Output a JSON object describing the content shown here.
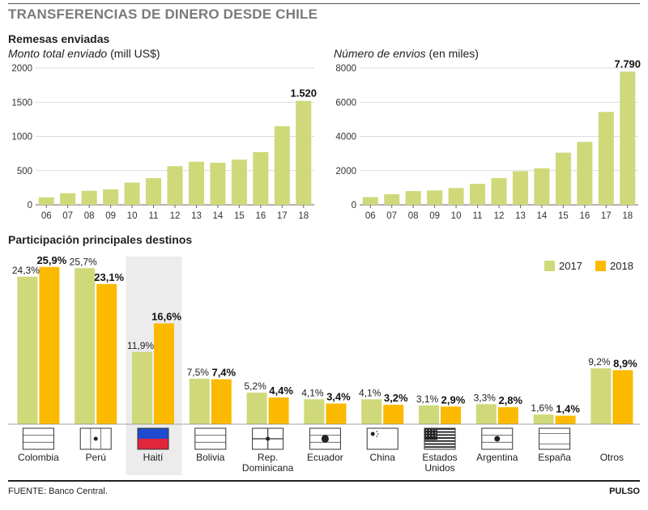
{
  "title": "TRANSFERENCIAS DE DINERO DESDE CHILE",
  "section1_title": "Remesas enviadas",
  "section2_title": "Participación principales destinos",
  "source": "FUENTE: Banco Central.",
  "brand": "PULSO",
  "colors": {
    "c2017": "#cfd97a",
    "c2018": "#fbba00",
    "highlight": "#ececec",
    "axis": "#888888"
  },
  "chart_data": [
    {
      "type": "bar",
      "subtitle_italic": "Monto total enviado",
      "subtitle_unit": " (mill US$)",
      "categories": [
        "06",
        "07",
        "08",
        "09",
        "10",
        "11",
        "12",
        "13",
        "14",
        "15",
        "16",
        "17",
        "18"
      ],
      "values": [
        110,
        170,
        205,
        225,
        325,
        390,
        565,
        630,
        615,
        660,
        770,
        1150,
        1520
      ],
      "ylim": [
        0,
        2000
      ],
      "yticks": [
        0,
        500,
        1000,
        1500,
        2000
      ],
      "ytick_labels": [
        "0",
        "500",
        "1000",
        "1500",
        "2000"
      ],
      "data_labels": [
        {
          "index": 12,
          "text": "1.520"
        }
      ]
    },
    {
      "type": "bar",
      "subtitle_italic": "Número de envios",
      "subtitle_unit": " (en miles)",
      "categories": [
        "06",
        "07",
        "08",
        "09",
        "10",
        "11",
        "12",
        "13",
        "14",
        "15",
        "16",
        "17",
        "18"
      ],
      "values": [
        450,
        620,
        800,
        840,
        980,
        1230,
        1560,
        1960,
        2130,
        3050,
        3680,
        5430,
        7790
      ],
      "ylim": [
        0,
        8000
      ],
      "yticks": [
        0,
        2000,
        4000,
        6000,
        8000
      ],
      "ytick_labels": [
        "0",
        "2000",
        "4000",
        "6000",
        "8000"
      ],
      "data_labels": [
        {
          "index": 12,
          "text": "7.790"
        }
      ]
    },
    {
      "type": "bar",
      "legend": [
        "2017",
        "2018"
      ],
      "legend_position": "top-right",
      "highlight_category": "Haití",
      "categories": [
        "Colombia",
        "Perú",
        "Haití",
        "Bolivia",
        "Rep. Dominicana",
        "Ecuador",
        "China",
        "Estados Unidos",
        "Argentina",
        "España",
        "Otros"
      ],
      "category_lines": [
        [
          "Colombia"
        ],
        [
          "Perú"
        ],
        [
          "Haití"
        ],
        [
          "Bolivia"
        ],
        [
          "Rep.",
          "Dominicana"
        ],
        [
          "Ecuador"
        ],
        [
          "China"
        ],
        [
          "Estados",
          "Unidos"
        ],
        [
          "Argentina"
        ],
        [
          "España"
        ],
        [
          "Otros"
        ]
      ],
      "flags": [
        "colombia",
        "peru",
        "haiti",
        "bolivia",
        "dominican-republic",
        "ecuador",
        "china",
        "united-states",
        "argentina",
        "spain",
        ""
      ],
      "series": [
        {
          "name": "2017",
          "values": [
            24.3,
            25.7,
            11.9,
            7.5,
            5.2,
            4.1,
            4.1,
            3.1,
            3.3,
            1.6,
            9.2
          ],
          "labels": [
            "24,3%",
            "25,7%",
            "11,9%",
            "7,5%",
            "5,2%",
            "4,1%",
            "4,1%",
            "3,1%",
            "3,3%",
            "1,6%",
            "9,2%"
          ]
        },
        {
          "name": "2018",
          "values": [
            25.9,
            23.1,
            16.6,
            7.4,
            4.4,
            3.4,
            3.2,
            2.9,
            2.8,
            1.4,
            8.9
          ],
          "labels": [
            "25,9%",
            "23,1%",
            "16,6%",
            "7,4%",
            "4,4%",
            "3,4%",
            "3,2%",
            "2,9%",
            "2,8%",
            "1,4%",
            "8,9%"
          ]
        }
      ]
    }
  ]
}
